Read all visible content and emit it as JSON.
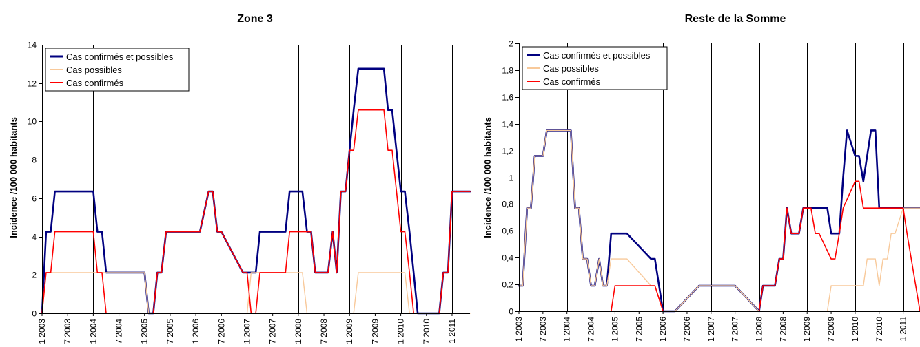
{
  "colors": {
    "confirmed_and_possible": "#000080",
    "possible": "#f8c99a",
    "confirmed": "#ff0000"
  },
  "chart_data": [
    {
      "type": "line",
      "title": "Zone 3",
      "ylabel": "Incidence /100 000 habitants",
      "ylim": [
        0,
        14
      ],
      "yticks": [
        "0",
        "2",
        "4",
        "6",
        "8",
        "10",
        "12",
        "14"
      ],
      "yticks_values": [
        0,
        2,
        4,
        6,
        8,
        10,
        12,
        14
      ],
      "xlim": [
        2003.0,
        2011.35
      ],
      "x_ticks": [
        {
          "label": "1 2003",
          "x": 2003.0
        },
        {
          "label": "7 2003",
          "x": 2003.5
        },
        {
          "label": "1 2004",
          "x": 2004.0
        },
        {
          "label": "7 2004",
          "x": 2004.5
        },
        {
          "label": "1 2005",
          "x": 2005.0
        },
        {
          "label": "7 2005",
          "x": 2005.5
        },
        {
          "label": "1 2006",
          "x": 2006.0
        },
        {
          "label": "7 2006",
          "x": 2006.5
        },
        {
          "label": "1 2007",
          "x": 2007.0
        },
        {
          "label": "7 2007",
          "x": 2007.5
        },
        {
          "label": "1 2008",
          "x": 2008.0
        },
        {
          "label": "7 2008",
          "x": 2008.5
        },
        {
          "label": "1 2009",
          "x": 2009.0
        },
        {
          "label": "7 2009",
          "x": 2009.5
        },
        {
          "label": "1 2010",
          "x": 2010.0
        },
        {
          "label": "7 2010",
          "x": 2010.5
        },
        {
          "label": "1 2011",
          "x": 2011.0
        }
      ],
      "year_lines": [
        2004,
        2005,
        2006,
        2007,
        2008,
        2009,
        2010,
        2011
      ],
      "legend": [
        "Cas confirmés et possibles",
        "Cas possibles",
        "Cas confirmés"
      ],
      "legend_position": "top-left",
      "series": [
        {
          "name": "Cas confirmés et possibles",
          "color": "#000080",
          "x": [
            2003.0,
            2003.08,
            2003.17,
            2003.25,
            2004.0,
            2004.08,
            2004.17,
            2004.25,
            2005.0,
            2005.08,
            2005.17,
            2005.25,
            2005.33,
            2005.42,
            2006.0,
            2006.08,
            2006.25,
            2006.33,
            2006.42,
            2006.5,
            2006.92,
            2007.0,
            2007.08,
            2007.17,
            2007.25,
            2007.33,
            2007.42,
            2007.75,
            2007.83,
            2008.08,
            2008.17,
            2008.25,
            2008.33,
            2008.42,
            2008.5,
            2008.58,
            2008.67,
            2008.75,
            2008.83,
            2008.92,
            2009.0,
            2009.08,
            2009.17,
            2009.25,
            2009.33,
            2009.67,
            2009.75,
            2009.83,
            2010.0,
            2010.08,
            2010.17,
            2010.25,
            2010.33,
            2010.42,
            2010.75,
            2010.83,
            2010.92,
            2011.0,
            2011.08,
            2011.35
          ],
          "y": [
            0,
            4.25,
            4.25,
            6.35,
            6.35,
            4.25,
            4.25,
            2.12,
            2.12,
            0,
            0,
            2.12,
            2.12,
            4.25,
            4.25,
            4.25,
            6.35,
            6.35,
            4.25,
            4.25,
            2.12,
            2.12,
            2.12,
            2.12,
            4.25,
            4.25,
            4.25,
            4.25,
            6.35,
            6.35,
            4.25,
            4.25,
            2.12,
            2.12,
            2.12,
            2.12,
            4.25,
            2.12,
            6.35,
            6.35,
            8.5,
            10.6,
            12.75,
            12.75,
            12.75,
            12.75,
            10.6,
            10.6,
            6.35,
            6.35,
            4.25,
            2.12,
            0,
            0,
            0,
            2.12,
            2.12,
            6.35,
            6.35,
            6.35
          ]
        },
        {
          "name": "Cas possibles",
          "color": "#f8c99a",
          "x": [
            2003.0,
            2003.08,
            2003.17,
            2004.0,
            2004.17,
            2005.0,
            2005.08,
            2007.0,
            2007.08,
            2007.17,
            2007.25,
            2008.0,
            2008.08,
            2008.17,
            2008.25,
            2008.92,
            2009.0,
            2009.08,
            2009.17,
            2010.0,
            2010.08,
            2010.17,
            2011.35
          ],
          "y": [
            0,
            2.12,
            2.12,
            2.12,
            2.12,
            2.12,
            0,
            0,
            2.12,
            2.12,
            2.12,
            2.12,
            2.12,
            0,
            0,
            0,
            0,
            0,
            2.12,
            2.12,
            2.12,
            0,
            0
          ]
        },
        {
          "name": "Cas confirmés",
          "color": "#ff0000",
          "x": [
            2003.0,
            2003.08,
            2003.17,
            2003.25,
            2004.0,
            2004.08,
            2004.17,
            2004.25,
            2005.0,
            2005.08,
            2005.17,
            2005.25,
            2005.33,
            2005.42,
            2006.0,
            2006.08,
            2006.25,
            2006.33,
            2006.42,
            2006.5,
            2006.92,
            2007.0,
            2007.08,
            2007.17,
            2007.25,
            2007.33,
            2007.42,
            2007.75,
            2007.83,
            2008.08,
            2008.17,
            2008.25,
            2008.33,
            2008.42,
            2008.5,
            2008.58,
            2008.67,
            2008.75,
            2008.83,
            2008.92,
            2009.0,
            2009.08,
            2009.17,
            2009.25,
            2009.33,
            2009.67,
            2009.75,
            2009.83,
            2010.0,
            2010.08,
            2010.17,
            2010.25,
            2010.33,
            2010.42,
            2010.75,
            2010.83,
            2010.92,
            2011.0,
            2011.08,
            2011.35
          ],
          "y": [
            0,
            2.12,
            2.12,
            4.25,
            4.25,
            2.12,
            2.12,
            0,
            0,
            0,
            0,
            2.12,
            2.12,
            4.25,
            4.25,
            4.25,
            6.35,
            6.35,
            4.25,
            4.25,
            2.12,
            2.12,
            0,
            0,
            2.12,
            2.12,
            2.12,
            2.12,
            4.25,
            4.25,
            4.25,
            4.25,
            2.12,
            2.12,
            2.12,
            2.12,
            4.25,
            2.12,
            6.35,
            6.35,
            8.5,
            8.5,
            10.6,
            10.6,
            10.6,
            10.6,
            8.5,
            8.5,
            4.25,
            4.25,
            2.12,
            0,
            0,
            0,
            0,
            2.12,
            2.12,
            6.35,
            6.35,
            6.35
          ]
        }
      ]
    },
    {
      "type": "line",
      "title": "Reste de la Somme",
      "ylabel": "Incidence /100 000 habitants",
      "ylim": [
        0,
        2
      ],
      "yticks": [
        "0",
        "0,2",
        "0,4",
        "0,6",
        "0,8",
        "1",
        "1,2",
        "1,4",
        "1,6",
        "1,8",
        "2"
      ],
      "yticks_values": [
        0,
        0.2,
        0.4,
        0.6,
        0.8,
        1,
        1.2,
        1.4,
        1.6,
        1.8,
        2
      ],
      "xlim": [
        2003.0,
        2011.35
      ],
      "x_ticks": [
        {
          "label": "1 2003",
          "x": 2003.0
        },
        {
          "label": "7 2003",
          "x": 2003.5
        },
        {
          "label": "1 2004",
          "x": 2004.0
        },
        {
          "label": "7 2004",
          "x": 2004.5
        },
        {
          "label": "1 2005",
          "x": 2005.0
        },
        {
          "label": "7 2005",
          "x": 2005.5
        },
        {
          "label": "1 2006",
          "x": 2006.0
        },
        {
          "label": "7 2006",
          "x": 2006.5
        },
        {
          "label": "1 2007",
          "x": 2007.0
        },
        {
          "label": "7 2007",
          "x": 2007.5
        },
        {
          "label": "1 2008",
          "x": 2008.0
        },
        {
          "label": "7 2008",
          "x": 2008.5
        },
        {
          "label": "1 2009",
          "x": 2009.0
        },
        {
          "label": "7 2009",
          "x": 2009.5
        },
        {
          "label": "1 2010",
          "x": 2010.0
        },
        {
          "label": "7 2010",
          "x": 2010.5
        },
        {
          "label": "1 2011",
          "x": 2011.0
        }
      ],
      "year_lines": [
        2004,
        2005,
        2006,
        2007,
        2008,
        2009,
        2010,
        2011
      ],
      "legend": [
        "Cas confirmés et possibles",
        "Cas possibles",
        "Cas confirmés"
      ],
      "legend_position": "top-left",
      "series": [
        {
          "name": "Cas confirmés et possibles",
          "color": "#000080",
          "x": [
            2003.0,
            2003.08,
            2003.17,
            2003.25,
            2003.33,
            2003.42,
            2003.5,
            2003.58,
            2003.67,
            2004.0,
            2004.08,
            2004.17,
            2004.25,
            2004.33,
            2004.42,
            2004.5,
            2004.58,
            2004.67,
            2004.75,
            2004.83,
            2004.92,
            2005.0,
            2005.08,
            2005.17,
            2005.25,
            2005.75,
            2005.83,
            2006.0,
            2006.08,
            2006.17,
            2006.25,
            2006.75,
            2006.83,
            2007.25,
            2007.33,
            2007.42,
            2007.5,
            2008.0,
            2008.08,
            2008.33,
            2008.42,
            2008.5,
            2008.58,
            2008.67,
            2008.83,
            2008.92,
            2009.0,
            2009.08,
            2009.17,
            2009.25,
            2009.42,
            2009.5,
            2009.58,
            2009.67,
            2009.75,
            2009.83,
            2010.0,
            2010.08,
            2010.17,
            2010.25,
            2010.33,
            2010.42,
            2010.5,
            2010.58,
            2010.67,
            2010.75,
            2010.83,
            2011.0,
            2011.08,
            2011.35
          ],
          "y": [
            0.19,
            0.19,
            0.77,
            0.77,
            1.16,
            1.16,
            1.16,
            1.35,
            1.35,
            1.35,
            1.35,
            0.77,
            0.77,
            0.39,
            0.39,
            0.19,
            0.19,
            0.39,
            0.19,
            0.19,
            0.58,
            0.58,
            0.58,
            0.58,
            0.58,
            0.39,
            0.39,
            0,
            0,
            0,
            0,
            0.19,
            0.19,
            0.19,
            0.19,
            0.19,
            0.19,
            0,
            0.19,
            0.19,
            0.39,
            0.39,
            0.77,
            0.58,
            0.58,
            0.77,
            0.77,
            0.77,
            0.77,
            0.77,
            0.77,
            0.58,
            0.58,
            0.58,
            1.0,
            1.35,
            1.16,
            1.16,
            0.97,
            1.16,
            1.35,
            1.35,
            0.77,
            0.77,
            0.77,
            0.77,
            0.77,
            0.77,
            0.77,
            0.77
          ]
        },
        {
          "name": "Cas possibles",
          "color": "#f8c99a",
          "x": [
            2003.0,
            2003.08,
            2003.17,
            2003.25,
            2003.33,
            2003.42,
            2003.5,
            2003.58,
            2003.67,
            2004.0,
            2004.08,
            2004.17,
            2004.25,
            2004.33,
            2004.42,
            2004.5,
            2004.58,
            2004.67,
            2004.75,
            2004.83,
            2004.92,
            2005.0,
            2005.08,
            2005.17,
            2005.25,
            2005.75,
            2005.83,
            2006.0,
            2006.08,
            2006.17,
            2006.25,
            2006.75,
            2006.83,
            2007.25,
            2007.33,
            2007.42,
            2007.5,
            2008.0,
            2008.08,
            2009.33,
            2009.42,
            2009.5,
            2010.17,
            2010.25,
            2010.42,
            2010.5,
            2010.58,
            2010.67,
            2010.75,
            2010.83,
            2011.0,
            2011.35
          ],
          "y": [
            0.19,
            0.19,
            0.77,
            0.77,
            1.16,
            1.16,
            1.16,
            1.35,
            1.35,
            1.35,
            1.35,
            0.77,
            0.77,
            0.39,
            0.39,
            0.19,
            0.19,
            0.39,
            0.19,
            0.19,
            0.39,
            0.39,
            0.39,
            0.39,
            0.39,
            0.19,
            0.19,
            0,
            0,
            0,
            0,
            0.19,
            0.19,
            0.19,
            0.19,
            0.19,
            0.19,
            0,
            0,
            0,
            0,
            0.19,
            0.19,
            0.39,
            0.39,
            0.19,
            0.39,
            0.39,
            0.58,
            0.58,
            0.77,
            0.77
          ]
        },
        {
          "name": "Cas confirmés",
          "color": "#ff0000",
          "x": [
            2003.0,
            2004.92,
            2005.0,
            2005.08,
            2005.75,
            2005.83,
            2006.0,
            2007.92,
            2008.0,
            2008.08,
            2008.33,
            2008.42,
            2008.5,
            2008.58,
            2008.67,
            2008.83,
            2008.92,
            2009.0,
            2009.08,
            2009.17,
            2009.25,
            2009.5,
            2009.58,
            2009.67,
            2009.75,
            2010.0,
            2010.08,
            2010.17,
            2010.25,
            2010.33,
            2010.42,
            2010.58,
            2011.0,
            2011.08,
            2011.35
          ],
          "y": [
            0,
            0,
            0.19,
            0.19,
            0.19,
            0.19,
            0,
            0,
            0,
            0.19,
            0.19,
            0.39,
            0.39,
            0.77,
            0.58,
            0.58,
            0.77,
            0.77,
            0.77,
            0.58,
            0.58,
            0.39,
            0.39,
            0.58,
            0.77,
            0.97,
            0.97,
            0.77,
            0.77,
            0.77,
            0.77,
            0.77,
            0.77,
            0.58,
            0
          ]
        }
      ]
    }
  ]
}
